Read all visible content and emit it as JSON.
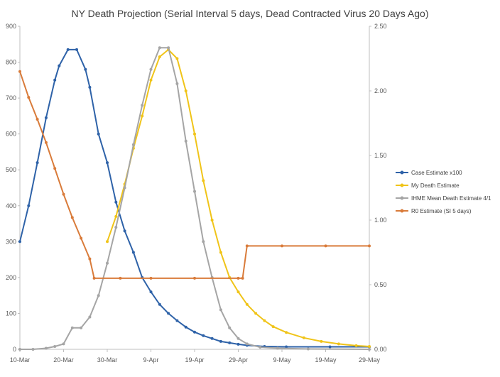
{
  "chart_data": {
    "type": "line",
    "title": "NY Death Projection (Serial Interval 5 days, Dead Contracted Virus 20 Days Ago)",
    "x_ticks": [
      "10-Mar",
      "20-Mar",
      "30-Mar",
      "9-Apr",
      "19-Apr",
      "29-Apr",
      "9-May",
      "19-May",
      "29-May"
    ],
    "x_range": [
      "10-Mar",
      "29-May"
    ],
    "y_left_range": [
      0,
      900
    ],
    "y_left_ticks": [
      "0",
      "100",
      "200",
      "300",
      "400",
      "500",
      "600",
      "700",
      "800",
      "900"
    ],
    "y_right_range": [
      0,
      2.5
    ],
    "y_right_ticks": [
      "0.00",
      "0.50",
      "1.00",
      "1.50",
      "2.00",
      "2.50"
    ],
    "grid": false,
    "legend_position": "right",
    "series": [
      {
        "name": "Case Estimate x100",
        "color": "#2e62a8",
        "axis": "left",
        "points": [
          [
            "10-Mar",
            300
          ],
          [
            "12-Mar",
            400
          ],
          [
            "14-Mar",
            520
          ],
          [
            "16-Mar",
            645
          ],
          [
            "18-Mar",
            750
          ],
          [
            "19-Mar",
            790
          ],
          [
            "21-Mar",
            835
          ],
          [
            "23-Mar",
            835
          ],
          [
            "25-Mar",
            780
          ],
          [
            "26-Mar",
            730
          ],
          [
            "28-Mar",
            600
          ],
          [
            "30-Mar",
            520
          ],
          [
            "1-Apr",
            410
          ],
          [
            "3-Apr",
            330
          ],
          [
            "5-Apr",
            270
          ],
          [
            "7-Apr",
            200
          ],
          [
            "9-Apr",
            160
          ],
          [
            "11-Apr",
            125
          ],
          [
            "13-Apr",
            100
          ],
          [
            "15-Apr",
            80
          ],
          [
            "17-Apr",
            62
          ],
          [
            "19-Apr",
            48
          ],
          [
            "21-Apr",
            38
          ],
          [
            "23-Apr",
            30
          ],
          [
            "25-Apr",
            22
          ],
          [
            "27-Apr",
            18
          ],
          [
            "29-Apr",
            14
          ],
          [
            "1-May",
            11
          ],
          [
            "5-May",
            8
          ],
          [
            "10-May",
            7
          ],
          [
            "20-May",
            7
          ],
          [
            "29-May",
            7
          ]
        ]
      },
      {
        "name": "My Death Estimate",
        "color": "#f0c419",
        "axis": "left",
        "points": [
          [
            "30-Mar",
            300
          ],
          [
            "1-Apr",
            370
          ],
          [
            "3-Apr",
            460
          ],
          [
            "5-Apr",
            560
          ],
          [
            "7-Apr",
            650
          ],
          [
            "9-Apr",
            750
          ],
          [
            "11-Apr",
            815
          ],
          [
            "13-Apr",
            835
          ],
          [
            "15-Apr",
            810
          ],
          [
            "17-Apr",
            720
          ],
          [
            "19-Apr",
            600
          ],
          [
            "21-Apr",
            470
          ],
          [
            "23-Apr",
            360
          ],
          [
            "25-Apr",
            270
          ],
          [
            "27-Apr",
            200
          ],
          [
            "29-Apr",
            160
          ],
          [
            "1-May",
            125
          ],
          [
            "3-May",
            100
          ],
          [
            "5-May",
            80
          ],
          [
            "7-May",
            63
          ],
          [
            "10-May",
            47
          ],
          [
            "14-May",
            32
          ],
          [
            "18-May",
            22
          ],
          [
            "22-May",
            15
          ],
          [
            "26-May",
            10
          ],
          [
            "29-May",
            8
          ]
        ]
      },
      {
        "name": "IHME Mean Death Estimate 4/1",
        "color": "#a5a5a5",
        "axis": "left",
        "points": [
          [
            "10-Mar",
            0
          ],
          [
            "13-Mar",
            0
          ],
          [
            "16-Mar",
            3
          ],
          [
            "18-Mar",
            8
          ],
          [
            "20-Mar",
            15
          ],
          [
            "22-Mar",
            60
          ],
          [
            "24-Mar",
            60
          ],
          [
            "26-Mar",
            90
          ],
          [
            "28-Mar",
            150
          ],
          [
            "30-Mar",
            240
          ],
          [
            "1-Apr",
            340
          ],
          [
            "3-Apr",
            450
          ],
          [
            "5-Apr",
            570
          ],
          [
            "7-Apr",
            680
          ],
          [
            "9-Apr",
            780
          ],
          [
            "11-Apr",
            840
          ],
          [
            "13-Apr",
            840
          ],
          [
            "15-Apr",
            740
          ],
          [
            "17-Apr",
            580
          ],
          [
            "19-Apr",
            440
          ],
          [
            "21-Apr",
            300
          ],
          [
            "23-Apr",
            200
          ],
          [
            "25-Apr",
            110
          ],
          [
            "27-Apr",
            60
          ],
          [
            "29-Apr",
            30
          ],
          [
            "1-May",
            15
          ],
          [
            "4-May",
            6
          ],
          [
            "8-May",
            3
          ],
          [
            "15-May",
            1
          ],
          [
            "29-May",
            0
          ]
        ]
      },
      {
        "name": "R0 Estimate (SI 5 days)",
        "color": "#d97b3a",
        "axis": "right",
        "points": [
          [
            "10-Mar",
            2.15
          ],
          [
            "12-Mar",
            1.95
          ],
          [
            "14-Mar",
            1.78
          ],
          [
            "16-Mar",
            1.6
          ],
          [
            "18-Mar",
            1.4
          ],
          [
            "20-Mar",
            1.2
          ],
          [
            "22-Mar",
            1.02
          ],
          [
            "24-Mar",
            0.86
          ],
          [
            "26-Mar",
            0.7
          ],
          [
            "27-Mar",
            0.55
          ],
          [
            "2-Apr",
            0.55
          ],
          [
            "9-Apr",
            0.55
          ],
          [
            "19-Apr",
            0.55
          ],
          [
            "29-Apr",
            0.55
          ],
          [
            "30-Apr",
            0.55
          ],
          [
            "1-May",
            0.8
          ],
          [
            "9-May",
            0.8
          ],
          [
            "19-May",
            0.8
          ],
          [
            "29-May",
            0.8
          ]
        ]
      }
    ]
  }
}
